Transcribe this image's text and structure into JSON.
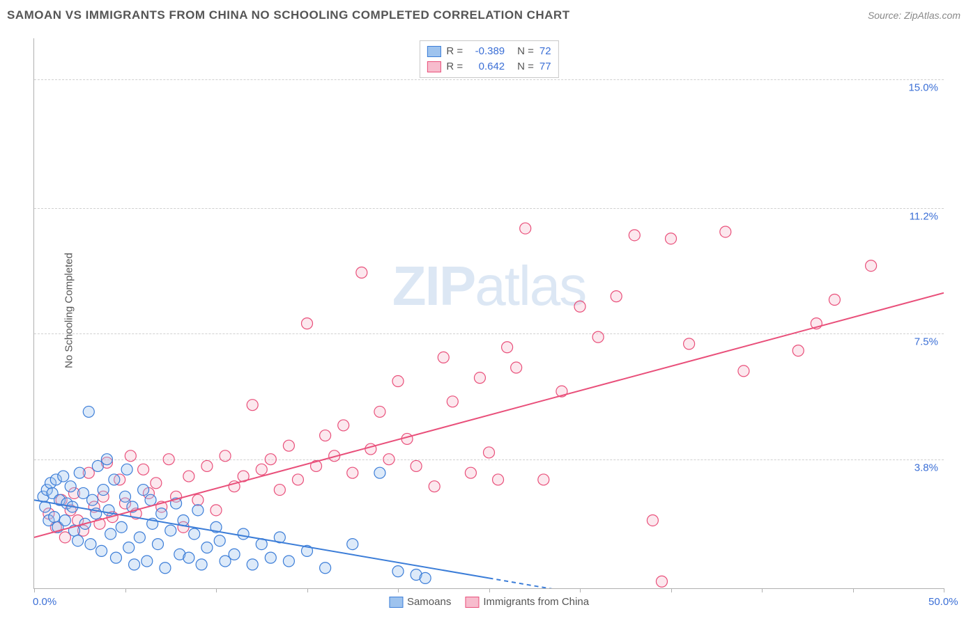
{
  "title": "SAMOAN VS IMMIGRANTS FROM CHINA NO SCHOOLING COMPLETED CORRELATION CHART",
  "source": "Source: ZipAtlas.com",
  "y_axis_label": "No Schooling Completed",
  "watermark_bold": "ZIP",
  "watermark_rest": "atlas",
  "chart": {
    "type": "scatter",
    "xlim": [
      0,
      50
    ],
    "ylim": [
      0,
      16.2
    ],
    "x_ticks": [
      0,
      5,
      10,
      15,
      20,
      25,
      30,
      35,
      40,
      45,
      50
    ],
    "x_tick_labels": {
      "0": "0.0%",
      "50": "50.0%"
    },
    "y_grid": [
      3.8,
      7.5,
      11.2,
      15.0
    ],
    "y_tick_labels": [
      "3.8%",
      "7.5%",
      "11.2%",
      "15.0%"
    ],
    "background": "#ffffff",
    "grid_color": "#d0d0d0",
    "axis_color": "#b0b0b0",
    "tick_label_color": "#3b6fd6",
    "marker_radius": 8,
    "marker_stroke_width": 1.2,
    "marker_fill_opacity": 0.35,
    "line_width": 2,
    "series": [
      {
        "name": "Samoans",
        "color_stroke": "#3b7dd8",
        "color_fill": "#9ec3ee",
        "R": "-0.389",
        "N": "72",
        "trend": {
          "x1": 0,
          "y1": 2.6,
          "x2": 25,
          "y2": 0.3,
          "dash_after_x": 25,
          "dash_to_x": 40
        },
        "points": [
          [
            0.5,
            2.7
          ],
          [
            0.7,
            2.9
          ],
          [
            0.6,
            2.4
          ],
          [
            0.9,
            3.1
          ],
          [
            0.8,
            2.0
          ],
          [
            1.0,
            2.8
          ],
          [
            1.2,
            3.2
          ],
          [
            1.1,
            2.1
          ],
          [
            1.4,
            2.6
          ],
          [
            1.3,
            1.8
          ],
          [
            1.6,
            3.3
          ],
          [
            1.8,
            2.5
          ],
          [
            1.7,
            2.0
          ],
          [
            2.0,
            3.0
          ],
          [
            2.2,
            1.7
          ],
          [
            2.1,
            2.4
          ],
          [
            2.5,
            3.4
          ],
          [
            2.4,
            1.4
          ],
          [
            2.7,
            2.8
          ],
          [
            2.8,
            1.9
          ],
          [
            3.0,
            5.2
          ],
          [
            3.2,
            2.6
          ],
          [
            3.1,
            1.3
          ],
          [
            3.5,
            3.6
          ],
          [
            3.4,
            2.2
          ],
          [
            3.7,
            1.1
          ],
          [
            3.8,
            2.9
          ],
          [
            4.0,
            3.8
          ],
          [
            4.2,
            1.6
          ],
          [
            4.1,
            2.3
          ],
          [
            4.5,
            0.9
          ],
          [
            4.4,
            3.2
          ],
          [
            4.8,
            1.8
          ],
          [
            5.0,
            2.7
          ],
          [
            5.2,
            1.2
          ],
          [
            5.1,
            3.5
          ],
          [
            5.5,
            0.7
          ],
          [
            5.4,
            2.4
          ],
          [
            5.8,
            1.5
          ],
          [
            6.0,
            2.9
          ],
          [
            6.2,
            0.8
          ],
          [
            6.5,
            1.9
          ],
          [
            6.4,
            2.6
          ],
          [
            6.8,
            1.3
          ],
          [
            7.0,
            2.2
          ],
          [
            7.2,
            0.6
          ],
          [
            7.5,
            1.7
          ],
          [
            7.8,
            2.5
          ],
          [
            8.0,
            1.0
          ],
          [
            8.2,
            2.0
          ],
          [
            8.5,
            0.9
          ],
          [
            8.8,
            1.6
          ],
          [
            9.0,
            2.3
          ],
          [
            9.5,
            1.2
          ],
          [
            9.2,
            0.7
          ],
          [
            10.0,
            1.8
          ],
          [
            10.5,
            0.8
          ],
          [
            10.2,
            1.4
          ],
          [
            11.0,
            1.0
          ],
          [
            11.5,
            1.6
          ],
          [
            12.0,
            0.7
          ],
          [
            12.5,
            1.3
          ],
          [
            13.0,
            0.9
          ],
          [
            13.5,
            1.5
          ],
          [
            14.0,
            0.8
          ],
          [
            15.0,
            1.1
          ],
          [
            16.0,
            0.6
          ],
          [
            17.5,
            1.3
          ],
          [
            19.0,
            3.4
          ],
          [
            20.0,
            0.5
          ],
          [
            21.0,
            0.4
          ],
          [
            21.5,
            0.3
          ]
        ]
      },
      {
        "name": "Immigrants from China",
        "color_stroke": "#e94f7a",
        "color_fill": "#f7bccd",
        "R": "0.642",
        "N": "77",
        "trend": {
          "x1": 0,
          "y1": 1.5,
          "x2": 50,
          "y2": 8.7
        },
        "points": [
          [
            0.8,
            2.2
          ],
          [
            1.2,
            1.8
          ],
          [
            1.5,
            2.6
          ],
          [
            1.7,
            1.5
          ],
          [
            2.0,
            2.3
          ],
          [
            2.4,
            2.0
          ],
          [
            2.2,
            2.8
          ],
          [
            2.7,
            1.7
          ],
          [
            3.0,
            3.4
          ],
          [
            3.3,
            2.4
          ],
          [
            3.6,
            1.9
          ],
          [
            4.0,
            3.7
          ],
          [
            3.8,
            2.7
          ],
          [
            4.3,
            2.1
          ],
          [
            4.7,
            3.2
          ],
          [
            5.0,
            2.5
          ],
          [
            5.3,
            3.9
          ],
          [
            5.6,
            2.2
          ],
          [
            6.0,
            3.5
          ],
          [
            6.3,
            2.8
          ],
          [
            6.7,
            3.1
          ],
          [
            7.0,
            2.4
          ],
          [
            7.4,
            3.8
          ],
          [
            7.8,
            2.7
          ],
          [
            8.2,
            1.8
          ],
          [
            8.5,
            3.3
          ],
          [
            9.0,
            2.6
          ],
          [
            9.5,
            3.6
          ],
          [
            10.0,
            2.3
          ],
          [
            10.5,
            3.9
          ],
          [
            11.0,
            3.0
          ],
          [
            11.5,
            3.3
          ],
          [
            12.0,
            5.4
          ],
          [
            12.5,
            3.5
          ],
          [
            13.0,
            3.8
          ],
          [
            13.5,
            2.9
          ],
          [
            14.0,
            4.2
          ],
          [
            14.5,
            3.2
          ],
          [
            15.0,
            7.8
          ],
          [
            15.5,
            3.6
          ],
          [
            16.0,
            4.5
          ],
          [
            16.5,
            3.9
          ],
          [
            17.0,
            4.8
          ],
          [
            17.5,
            3.4
          ],
          [
            18.0,
            9.3
          ],
          [
            18.5,
            4.1
          ],
          [
            19.0,
            5.2
          ],
          [
            19.5,
            3.8
          ],
          [
            20.0,
            6.1
          ],
          [
            20.5,
            4.4
          ],
          [
            21.0,
            3.6
          ],
          [
            22.0,
            3.0
          ],
          [
            22.5,
            6.8
          ],
          [
            23.0,
            5.5
          ],
          [
            24.0,
            3.4
          ],
          [
            24.5,
            6.2
          ],
          [
            25.0,
            4.0
          ],
          [
            25.5,
            3.2
          ],
          [
            26.0,
            7.1
          ],
          [
            26.5,
            6.5
          ],
          [
            27.0,
            10.6
          ],
          [
            28.0,
            3.2
          ],
          [
            29.0,
            5.8
          ],
          [
            30.0,
            8.3
          ],
          [
            31.0,
            7.4
          ],
          [
            32.0,
            8.6
          ],
          [
            33.0,
            10.4
          ],
          [
            34.0,
            2.0
          ],
          [
            35.0,
            10.3
          ],
          [
            36.0,
            7.2
          ],
          [
            38.0,
            10.5
          ],
          [
            39.0,
            6.4
          ],
          [
            42.0,
            7.0
          ],
          [
            44.0,
            8.5
          ],
          [
            46.0,
            9.5
          ],
          [
            34.5,
            0.2
          ],
          [
            43.0,
            7.8
          ]
        ]
      }
    ]
  },
  "legend_bottom": [
    {
      "label": "Samoans",
      "series": 0
    },
    {
      "label": "Immigrants from China",
      "series": 1
    }
  ]
}
